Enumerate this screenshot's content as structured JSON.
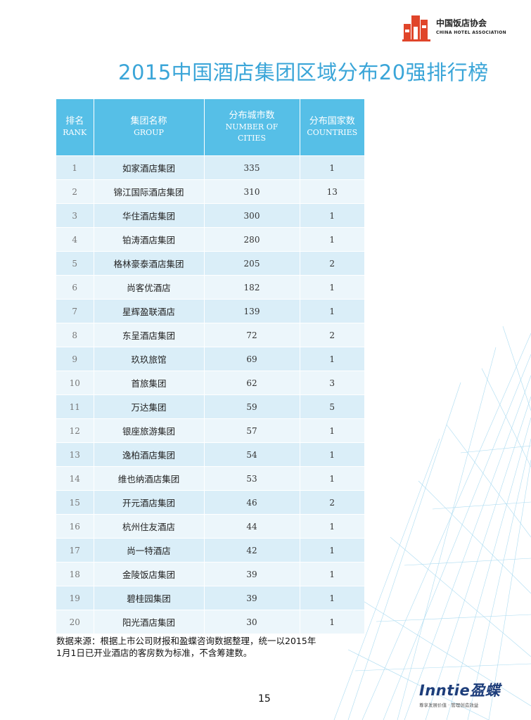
{
  "header": {
    "logo_cn": "中国饭店协会",
    "logo_en": "CHINA HOTEL ASSOCIATION",
    "title": "2015中国酒店集团区域分布20强排行榜"
  },
  "table": {
    "headers": [
      {
        "cn": "排名",
        "en": "RANK"
      },
      {
        "cn": "集团名称",
        "en": "GROUP"
      },
      {
        "cn": "分布城市数",
        "en": "NUMBER OF CITIES"
      },
      {
        "cn": "分布国家数",
        "en": "COUNTRIES"
      }
    ],
    "rows": [
      {
        "rank": "1",
        "group": "如家酒店集团",
        "cities": "335",
        "countries": "1"
      },
      {
        "rank": "2",
        "group": "锦江国际酒店集团",
        "cities": "310",
        "countries": "13"
      },
      {
        "rank": "3",
        "group": "华住酒店集团",
        "cities": "300",
        "countries": "1"
      },
      {
        "rank": "4",
        "group": "铂涛酒店集团",
        "cities": "280",
        "countries": "1"
      },
      {
        "rank": "5",
        "group": "格林豪泰酒店集团",
        "cities": "205",
        "countries": "2"
      },
      {
        "rank": "6",
        "group": "尚客优酒店",
        "cities": "182",
        "countries": "1"
      },
      {
        "rank": "7",
        "group": "星辉盈联酒店",
        "cities": "139",
        "countries": "1"
      },
      {
        "rank": "8",
        "group": "东呈酒店集团",
        "cities": "72",
        "countries": "2"
      },
      {
        "rank": "9",
        "group": "玖玖旅馆",
        "cities": "69",
        "countries": "1"
      },
      {
        "rank": "10",
        "group": "首旅集团",
        "cities": "62",
        "countries": "3"
      },
      {
        "rank": "11",
        "group": "万达集团",
        "cities": "59",
        "countries": "5"
      },
      {
        "rank": "12",
        "group": "银座旅游集团",
        "cities": "57",
        "countries": "1"
      },
      {
        "rank": "13",
        "group": "逸柏酒店集团",
        "cities": "54",
        "countries": "1"
      },
      {
        "rank": "14",
        "group": "维也纳酒店集团",
        "cities": "53",
        "countries": "1"
      },
      {
        "rank": "15",
        "group": "开元酒店集团",
        "cities": "46",
        "countries": "2"
      },
      {
        "rank": "16",
        "group": "杭州住友酒店",
        "cities": "44",
        "countries": "1"
      },
      {
        "rank": "17",
        "group": "尚一特酒店",
        "cities": "42",
        "countries": "1"
      },
      {
        "rank": "18",
        "group": "金陵饭店集团",
        "cities": "39",
        "countries": "1"
      },
      {
        "rank": "19",
        "group": "碧桂园集团",
        "cities": "39",
        "countries": "1"
      },
      {
        "rank": "20",
        "group": "阳光酒店集团",
        "cities": "30",
        "countries": "1"
      }
    ]
  },
  "source": {
    "line1": "数据来源：根据上市公司财报和盈蝶咨询数据整理，统一以2015年",
    "line2": "1月1日已开业酒店的客房数为标准，不含筹建数。"
  },
  "footer": {
    "brand_name": "Inntie盈蝶",
    "brand_tagline": "尊享发展价值 · 管理创造效益",
    "page_number": "15"
  },
  "colors": {
    "title": "#3aa5d8",
    "header_bg": "#56bfe7",
    "row_odd": "#daeef8",
    "row_even": "#ecf6fb",
    "logo_red": "#e0452a",
    "brand_blue": "#1d3d7a"
  }
}
